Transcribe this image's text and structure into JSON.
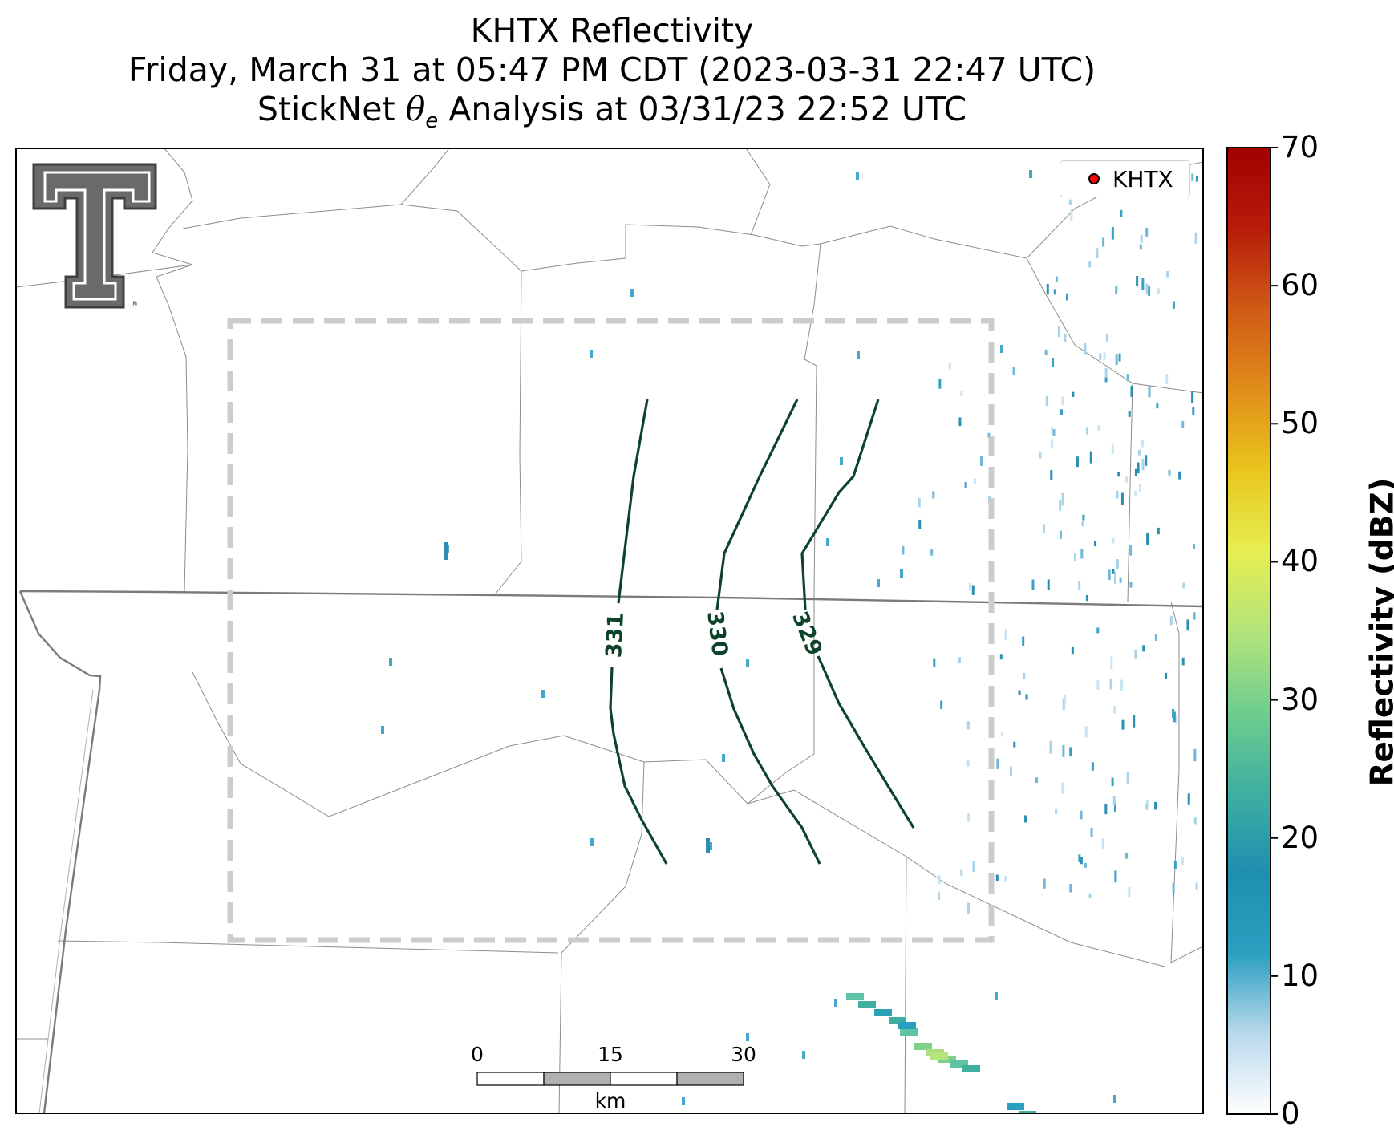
{
  "title": {
    "line1": "KHTX Reflectivity",
    "line2": "Friday, March 31 at 05:47 PM CDT (2023-03-31 22:47 UTC)",
    "line3_prefix": "StickNet ",
    "line3_theta": "θ",
    "line3_sub": "e",
    "line3_suffix": " Analysis at 03/31/23 22:52 UTC"
  },
  "legend": {
    "label": "KHTX",
    "marker_color": "#ff0000"
  },
  "colorbar": {
    "label": "Reflectivity (dBZ)",
    "ticks": [
      "0",
      "10",
      "20",
      "30",
      "40",
      "50",
      "60",
      "70"
    ],
    "min": 0,
    "max": 70,
    "colors": [
      "#ffffff",
      "#b9d9ec",
      "#2a9fc0",
      "#1f8fb0",
      "#3fb0a0",
      "#6fce8e",
      "#b5e47a",
      "#e6ef50",
      "#e9c51c",
      "#e08d1a",
      "#d05a16",
      "#b71c0a",
      "#a20000"
    ]
  },
  "contours": {
    "labels": [
      "331",
      "330",
      "329"
    ],
    "color": "#0d4429"
  },
  "scale_bar": {
    "labels": [
      "0",
      "15",
      "30"
    ],
    "unit": "km"
  },
  "logo": {
    "name": "Texas Tech Double T"
  }
}
